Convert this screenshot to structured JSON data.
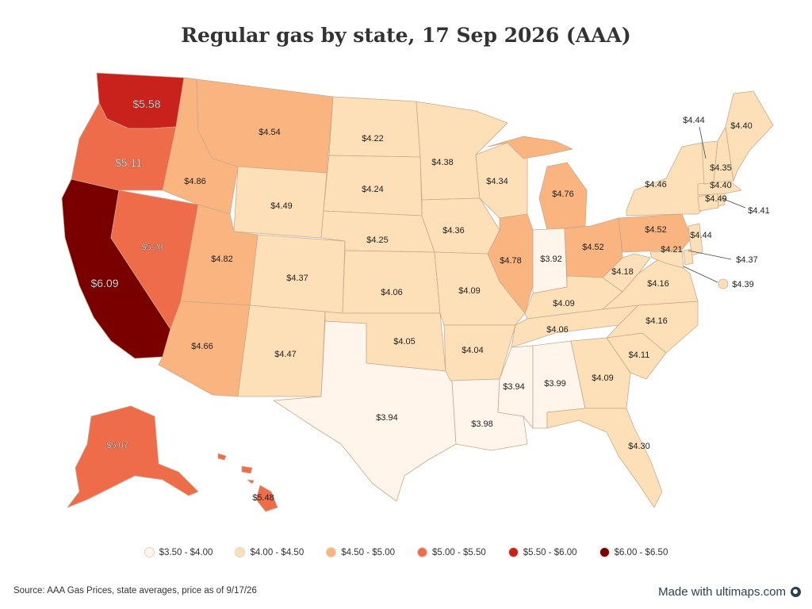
{
  "title": "Regular gas by state, 17 Sep 2026 (AAA)",
  "source": "Source: AAA Gas Prices, state averages, price as of 9/17/26",
  "credit": "Made with ultimaps.com",
  "credit_icon": "globe-icon",
  "colors": {
    "bin1": "#fff5ea",
    "bin2": "#fde0b8",
    "bin3": "#f9b480",
    "bin4": "#ef6c4a",
    "bin5": "#c9211b",
    "bin6": "#7a0000"
  },
  "legend": [
    {
      "label": "$3.50 - $4.00",
      "color": "#fff5ea"
    },
    {
      "label": "$4.00 - $4.50",
      "color": "#fde0b8"
    },
    {
      "label": "$4.50 - $5.00",
      "color": "#f9b480"
    },
    {
      "label": "$5.00 - $5.50",
      "color": "#ef6c4a"
    },
    {
      "label": "$5.50 - $6.00",
      "color": "#c9211b"
    },
    {
      "label": "$6.00 - $6.50",
      "color": "#7a0000"
    }
  ],
  "prices": {
    "WA": "$5.58",
    "OR": "$5.11",
    "CA": "$6.09",
    "NV": "$5.20",
    "ID": "$4.86",
    "MT": "$4.54",
    "WY": "$4.49",
    "UT": "$4.82",
    "AZ": "$4.66",
    "CO": "$4.37",
    "NM": "$4.47",
    "ND": "$4.22",
    "SD": "$4.24",
    "NE": "$4.25",
    "KS": "$4.06",
    "OK": "$4.05",
    "TX": "$3.94",
    "MN": "$4.38",
    "IA": "$4.36",
    "MO": "$4.09",
    "AR": "$4.04",
    "LA": "$3.98",
    "WI": "$4.34",
    "IL": "$4.78",
    "MI": "$4.76",
    "IN": "$3.92",
    "OH": "$4.52",
    "KY": "$4.09",
    "TN": "$4.06",
    "MS": "$3.94",
    "AL": "$3.99",
    "GA": "$4.09",
    "FL": "$4.30",
    "SC": "$4.11",
    "NC": "$4.16",
    "VA": "$4.16",
    "WV": "$4.18",
    "PA": "$4.52",
    "NY": "$4.46",
    "VT": "$4.44",
    "NH": "$4.35",
    "ME": "$4.40",
    "MA": "$4.40",
    "RI": "$4.41",
    "CT": "$4.49",
    "NJ": "$4.44",
    "DE": "$4.37",
    "MD": "$4.21",
    "DC": "$4.39",
    "AK": "$5.07",
    "HI": "$5.48"
  }
}
